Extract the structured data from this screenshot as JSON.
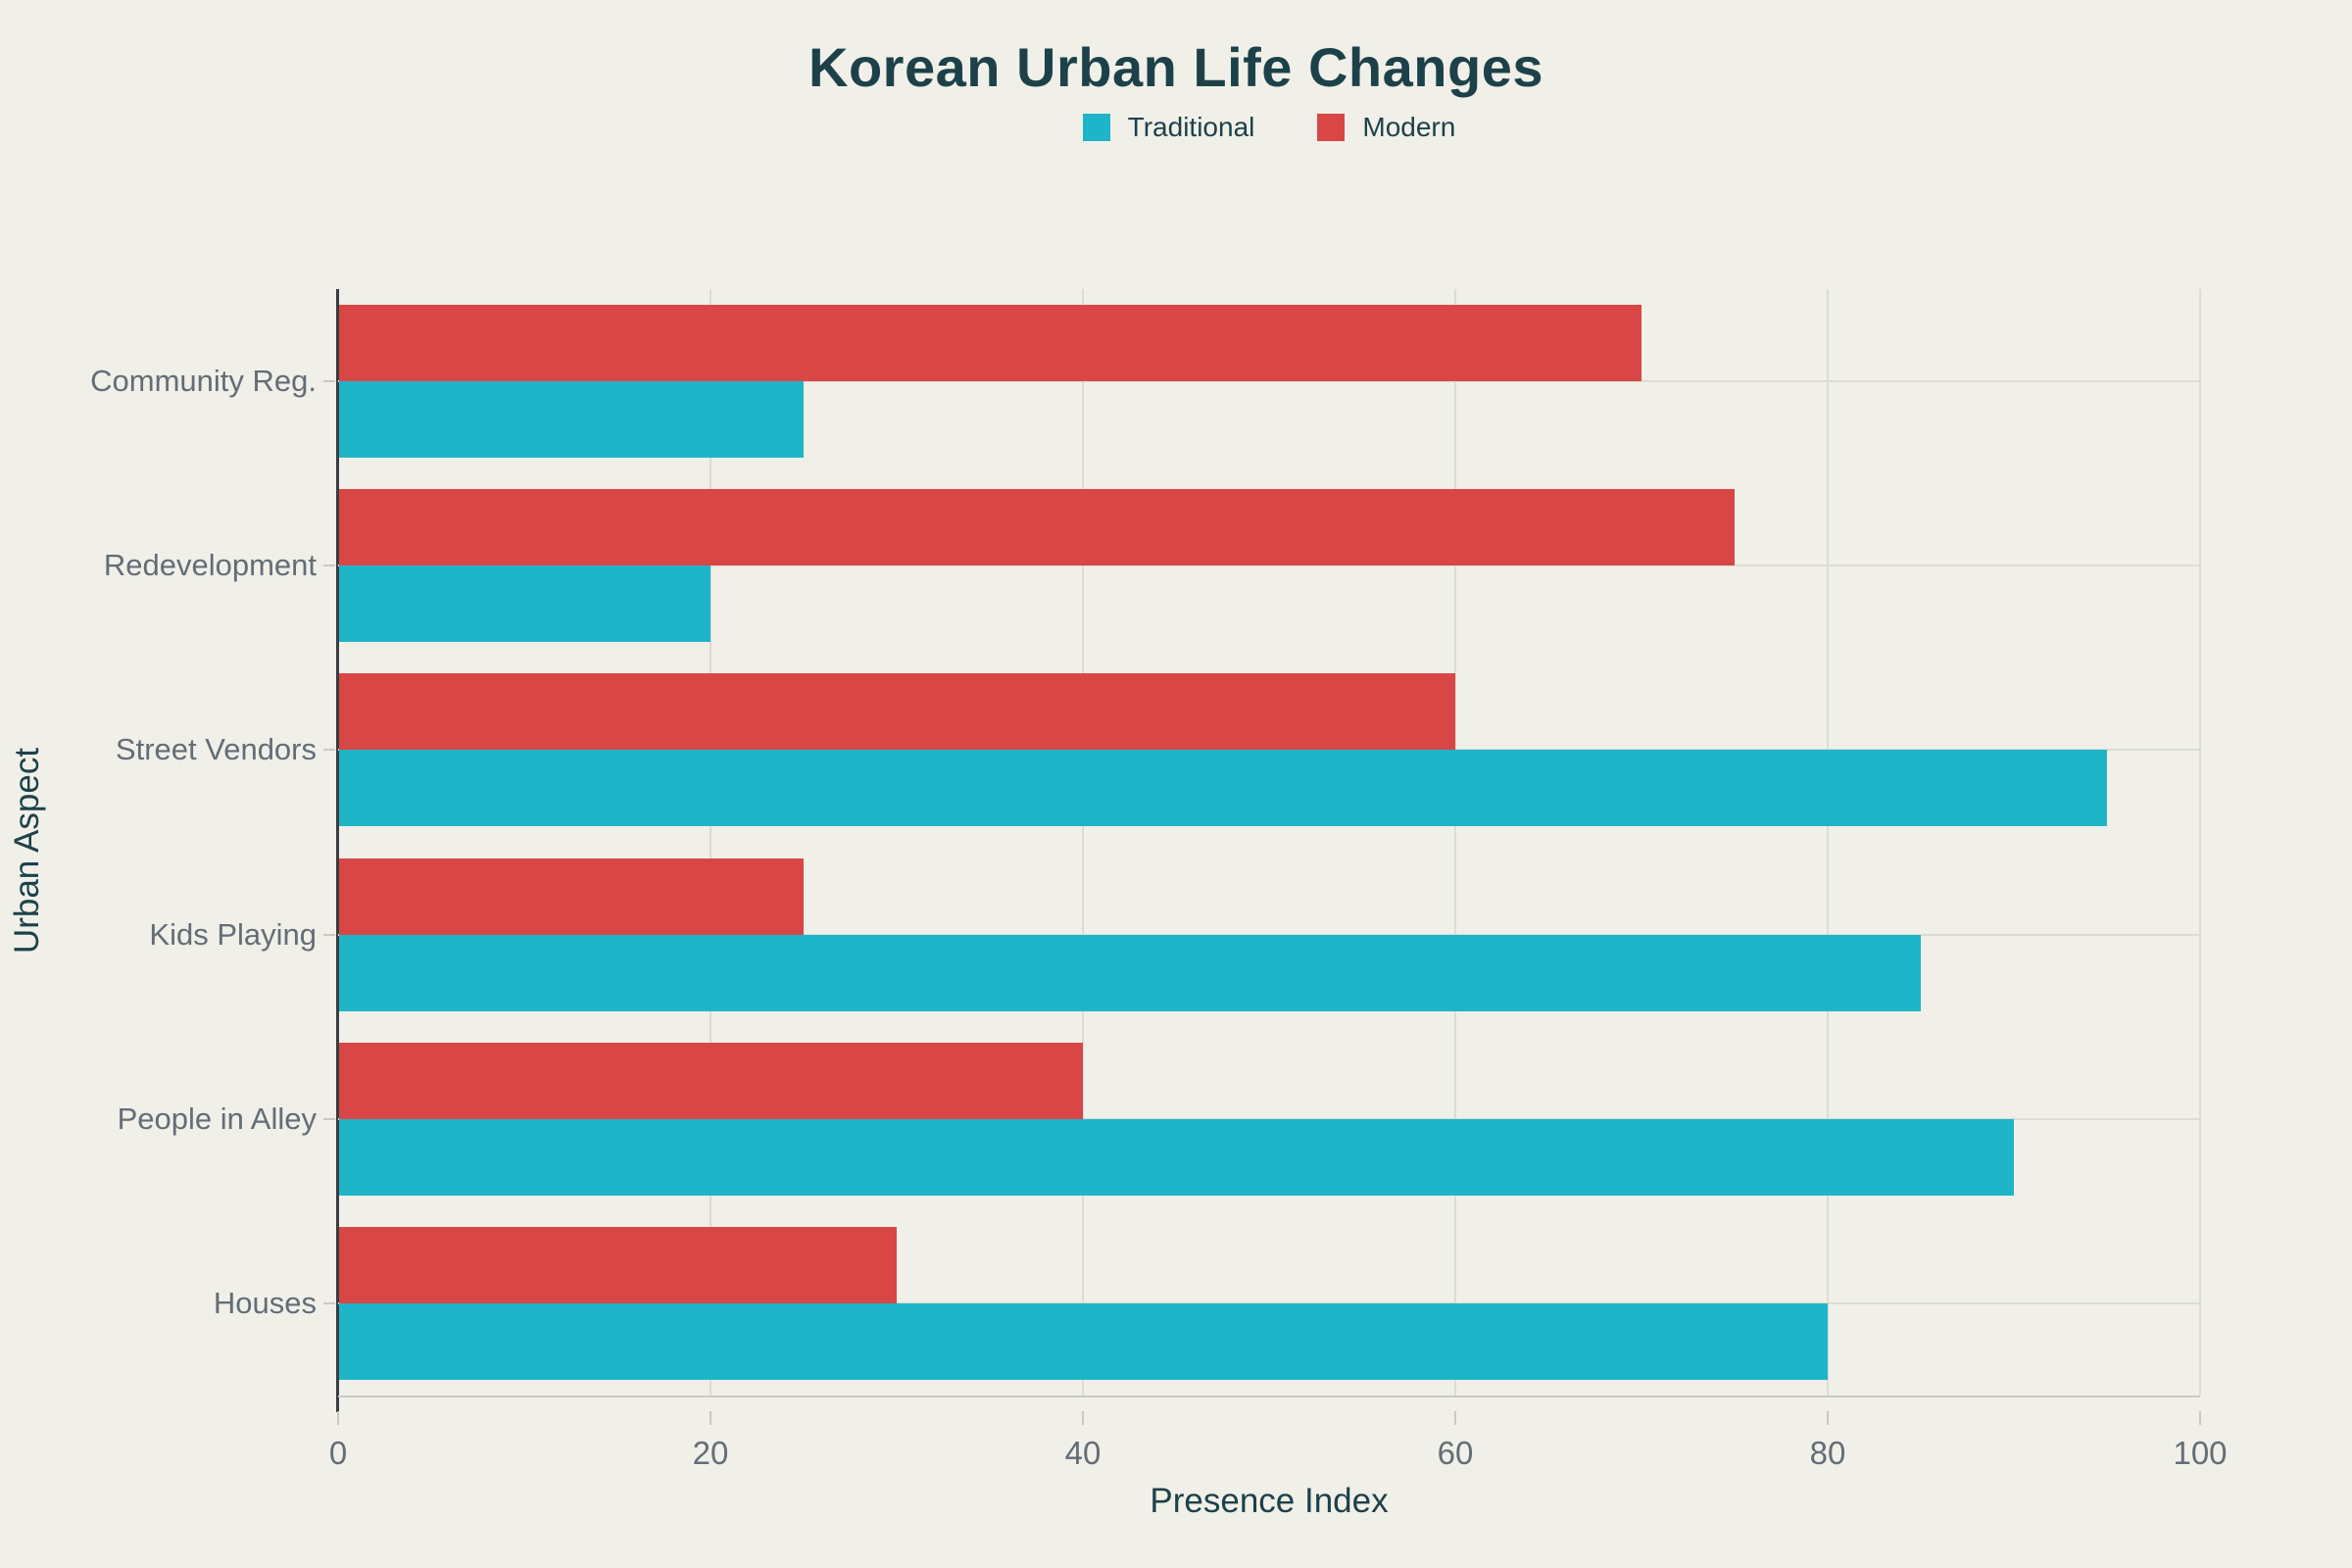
{
  "title": "Korean Urban Life Changes",
  "x_axis": {
    "title": "Presence Index"
  },
  "y_axis": {
    "title": "Urban Aspect"
  },
  "colors": {
    "background": "#f0f0e9",
    "traditional": "#1fb5c9",
    "modern": "#d94646",
    "grid": "#dcdcd3",
    "axis_line": "#383d40",
    "heading_text": "#1d4149",
    "label_text": "#646d75"
  },
  "chart_data": {
    "type": "bar",
    "orientation": "horizontal",
    "title": "Korean Urban Life Changes",
    "xlabel": "Presence Index",
    "ylabel": "Urban Aspect",
    "xlim": [
      0,
      100
    ],
    "xticks": [
      0,
      20,
      40,
      60,
      80,
      100
    ],
    "grid": true,
    "legend_position": "top-center",
    "legend_order": [
      "Traditional",
      "Modern"
    ],
    "bar_order_within_group_top_to_bottom": [
      "Modern",
      "Traditional"
    ],
    "categories_top_to_bottom": [
      "Community Reg.",
      "Redevelopment",
      "Street Vendors",
      "Kids Playing",
      "People in Alley",
      "Houses"
    ],
    "series": [
      {
        "name": "Traditional",
        "color": "#1fb5c9",
        "values": [
          25,
          20,
          95,
          85,
          90,
          80
        ]
      },
      {
        "name": "Modern",
        "color": "#d94646",
        "values": [
          70,
          75,
          60,
          25,
          40,
          30
        ]
      }
    ]
  }
}
